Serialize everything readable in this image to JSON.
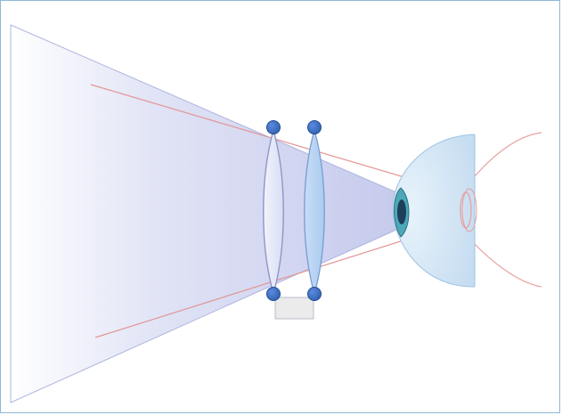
{
  "colors": {
    "frame_border": "#8db8d8",
    "light_cone": "#c9cdef",
    "light_cone_edge": "#a9b0dc",
    "ray_line": "#e08a8a",
    "lens_fill": "#dfe3f6",
    "lens_fill_blue": "#b9d4f3",
    "lens_edge": "#8f95c8",
    "knob_fill": "#2f63b7",
    "knob_edge": "#244d92",
    "eye_cornea": "#cfe2f4",
    "eye_lens": "#48a9b8",
    "eye_pupil": "#1f3f58",
    "eye_outline": "#e9a2a2",
    "base_fill": "#e9e9ea",
    "base_edge": "#b8b8c0"
  },
  "icons": {
    "cone": "light-cone",
    "lens_left": "biconvex-lens",
    "lens_right": "biconvex-lens",
    "eye": "eye-cross-section",
    "base": "lens-mount-base"
  }
}
